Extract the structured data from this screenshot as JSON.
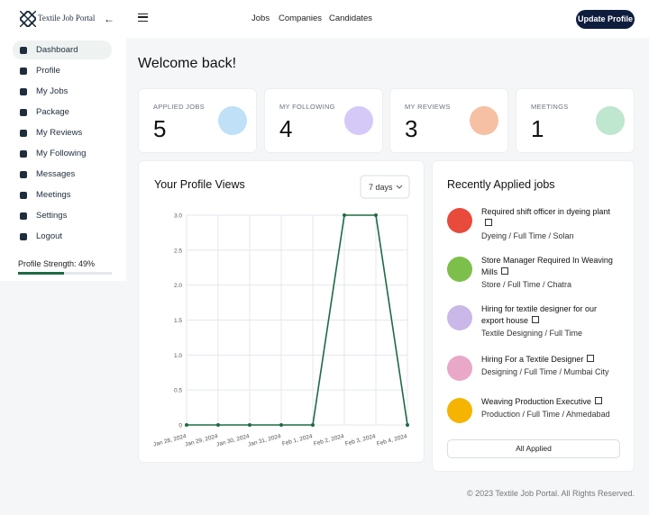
{
  "sidebar": {
    "logo": "Textile Job Portal",
    "items": [
      "Dashboard",
      "Profile",
      "My Jobs",
      "Package",
      "My Reviews",
      "My Following",
      "Messages",
      "Meetings",
      "Settings",
      "Logout"
    ],
    "profile_strength": {
      "label": "Profile Strength: 49%",
      "value": 49
    }
  },
  "topbar": {
    "links": [
      "Jobs",
      "Companies",
      "Candidates"
    ],
    "button": "Update Profile"
  },
  "welcome": "Welcome back!",
  "stats": [
    {
      "label": "APPLIED JOBS",
      "value": "5"
    },
    {
      "label": "MY FOLLOWING",
      "value": "4"
    },
    {
      "label": "MY REVIEWS",
      "value": "3"
    },
    {
      "label": "MEETINGS",
      "value": "1"
    }
  ],
  "chart_data": {
    "type": "line",
    "title": "Your Profile Views",
    "filter": "7 days",
    "categories": [
      "Jan 28, 2024",
      "Jan 29, 2024",
      "Jan 30, 2024",
      "Jan 31, 2024",
      "Feb 1, 2024",
      "Feb 2, 2024",
      "Feb 3, 2024",
      "Feb 4, 2024"
    ],
    "values": [
      0,
      0,
      0,
      0,
      0,
      3,
      3,
      0
    ],
    "color": "#1e6b45",
    "ylim": [
      0,
      3
    ],
    "yticks": [
      0,
      0.5,
      {
        "value": 1,
        "label": "1.0"
      },
      1.5,
      {
        "value": 2,
        "label": "2.0"
      },
      2.5,
      {
        "value": 3,
        "label": "3.0"
      }
    ],
    "grid": true
  },
  "recent_jobs": {
    "title": "Recently Applied jobs",
    "jobs": [
      {
        "title": "Required shift officer in dyeing plant",
        "meta": "Dyeing / Full Time / Solan"
      },
      {
        "title": "Store Manager Required In Weaving Mills",
        "meta": "Store / Full Time / Chatra"
      },
      {
        "title": "Hiring for textile designer for our export house",
        "meta": "Textile Designing / Full Time"
      },
      {
        "title": "Hiring For a Textile Designer",
        "meta": "Designing / Full Time / Mumbai City"
      },
      {
        "title": "Weaving Production Executive",
        "meta": "Production / Full Time / Ahmedabad"
      }
    ],
    "button": "All Applied"
  },
  "footer": "© 2023 Textile Job Portal. All Rights Reserved."
}
